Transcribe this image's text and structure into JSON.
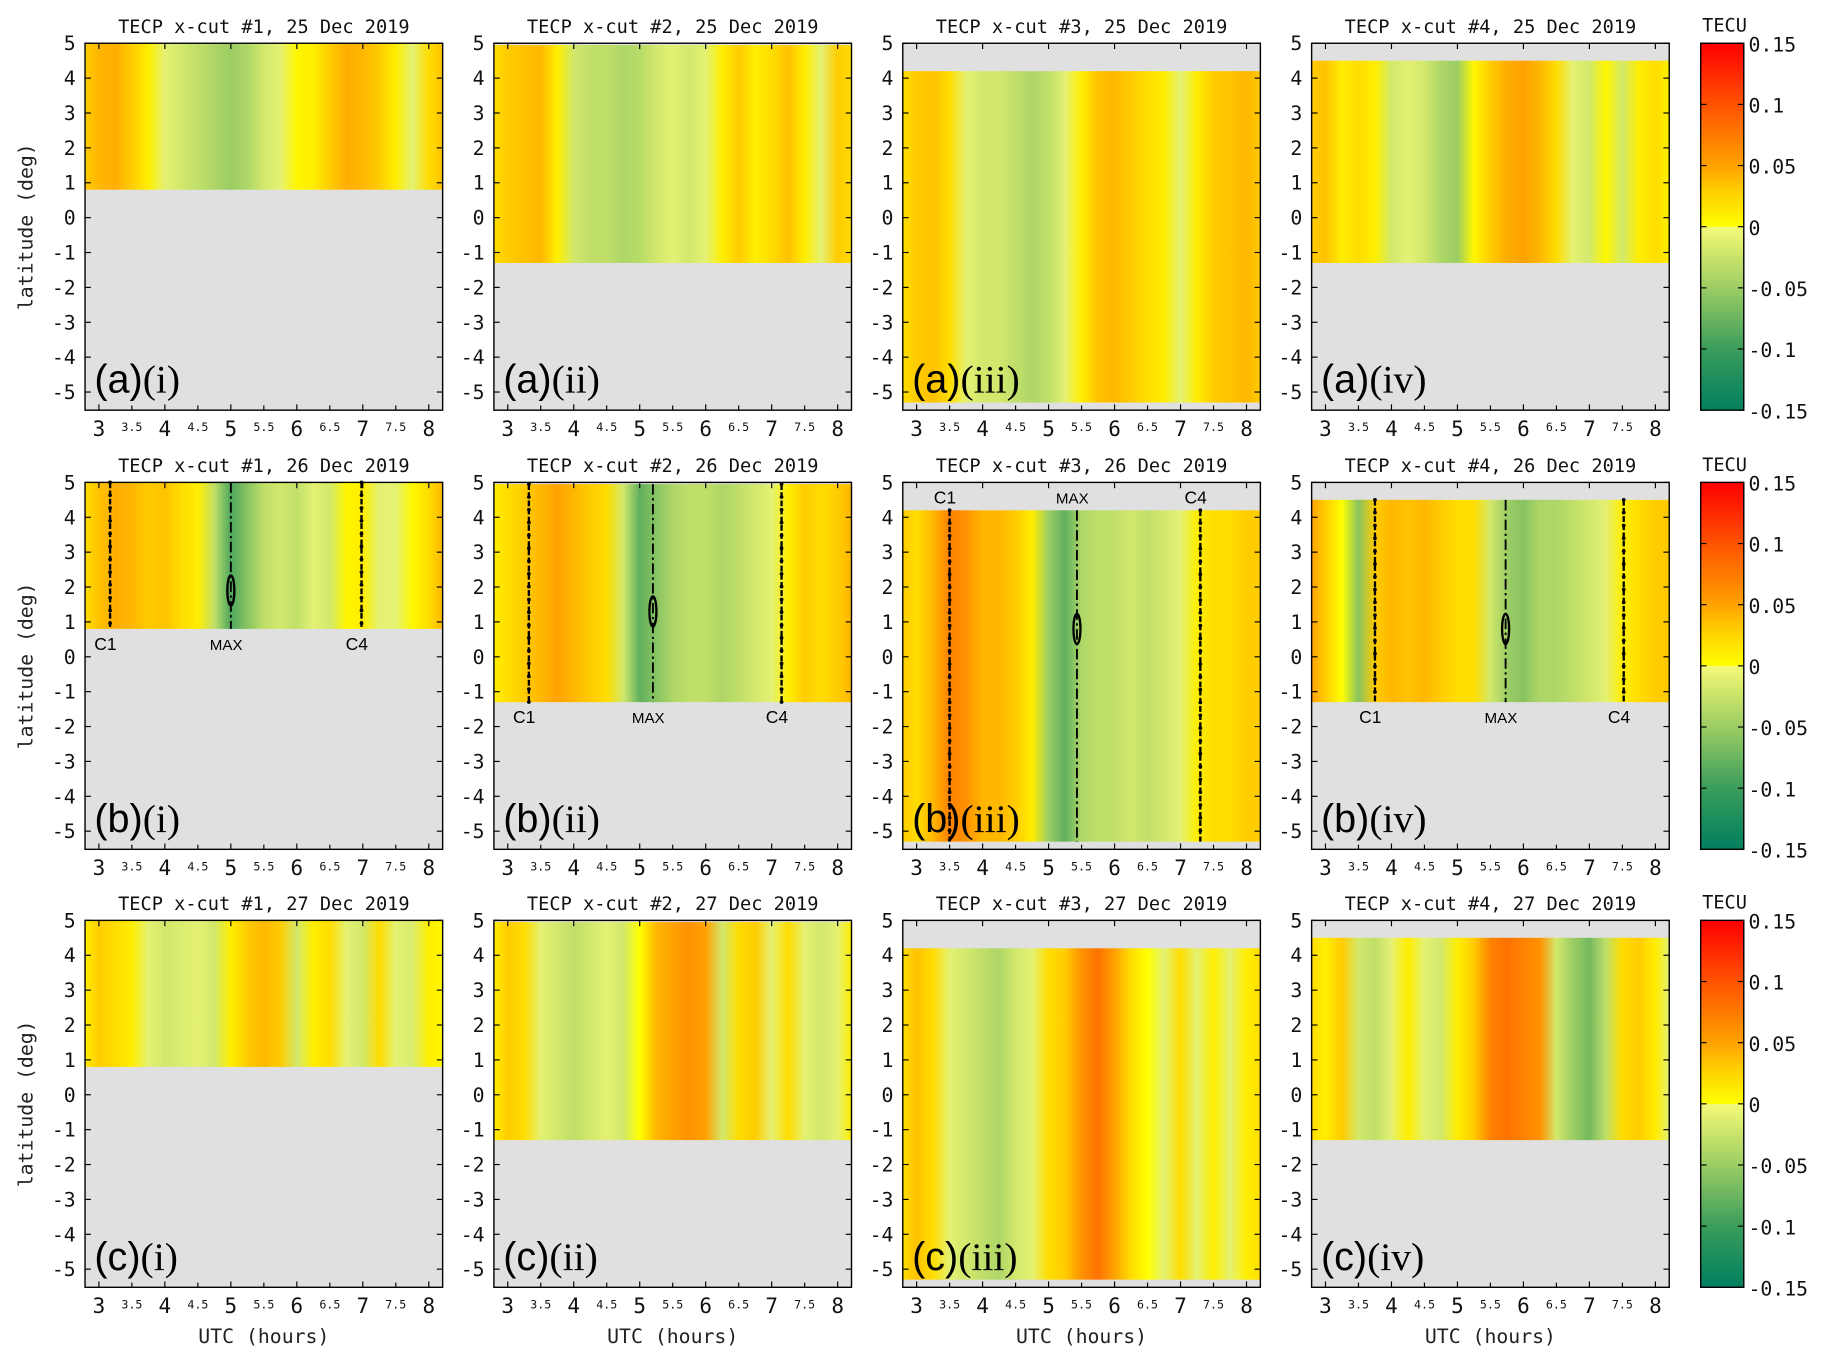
{
  "chart_data": {
    "type": "heatmap",
    "xlabel": "UTC (hours)",
    "ylabel": "latitude (deg)",
    "xlim": [
      2.79,
      8.21
    ],
    "ylim": [
      -5.52,
      5
    ],
    "x_major_ticks": [
      "3",
      "4",
      "5",
      "6",
      "7",
      "8"
    ],
    "x_minor_ticks": [
      "3.5",
      "4.5",
      "5.5",
      "6.5",
      "7.5"
    ],
    "y_ticks": [
      "5",
      "4",
      "3",
      "2",
      "1",
      "0",
      "-1",
      "-2",
      "-3",
      "-4",
      "-5"
    ],
    "no_data_color": "#e0e0e0",
    "colorbar": {
      "title": "TECU",
      "range": [
        -0.15,
        0.15
      ],
      "ticks": [
        "0.15",
        "0.1",
        "0.05",
        "0",
        "-0.05",
        "-0.1",
        "-0.15"
      ],
      "stops": [
        [
          -0.15,
          "#007f5f"
        ],
        [
          -0.1,
          "#3a9d5b"
        ],
        [
          -0.05,
          "#9ccd64"
        ],
        [
          -0.02,
          "#d2e86c"
        ],
        [
          -0.0001,
          "#f5fa7a"
        ],
        [
          0,
          "#ffff00"
        ],
        [
          0.03,
          "#ffcc00"
        ],
        [
          0.05,
          "#ffa200"
        ],
        [
          0.1,
          "#ff5200"
        ],
        [
          0.15,
          "#ff0000"
        ]
      ]
    },
    "time_samples": {
      "start": 2.75,
      "step": 0.25
    },
    "cuts": [
      {
        "id": "#1",
        "lat_range": [
          0.8,
          5
        ]
      },
      {
        "id": "#2",
        "lat_range": [
          -1.3,
          4.95
        ]
      },
      {
        "id": "#3",
        "lat_range": [
          -5.3,
          4.2
        ]
      },
      {
        "id": "#4",
        "lat_range": [
          -1.3,
          4.5
        ]
      }
    ],
    "panels": [
      {
        "title": "TECP x-cut #1, 25 Dec 2019",
        "letter": "(a)",
        "roman": "(i)",
        "row": 0,
        "cut": 0,
        "values": [
          0.03,
          0.04,
          0.045,
          0.03,
          0.01,
          -0.01,
          -0.02,
          -0.03,
          -0.04,
          -0.05,
          -0.04,
          -0.02,
          -0.01,
          0.005,
          0.01,
          0.03,
          0.045,
          0.04,
          0.03,
          0.01,
          -0.01,
          0.02,
          0.035
        ]
      },
      {
        "title": "TECP x-cut #2, 25 Dec 2019",
        "letter": "(a)",
        "roman": "(ii)",
        "row": 0,
        "cut": 1,
        "values": [
          0.02,
          0.03,
          0.035,
          0.04,
          0.01,
          -0.02,
          -0.03,
          -0.03,
          -0.04,
          -0.035,
          -0.02,
          -0.01,
          -0.02,
          -0.01,
          0.01,
          0.03,
          0.01,
          0.02,
          0.035,
          0.01,
          -0.01,
          0.03,
          0.02
        ]
      },
      {
        "title": "TECP x-cut #3, 25 Dec 2019",
        "letter": "(a)",
        "roman": "(iii)",
        "row": 0,
        "cut": 2,
        "values": [
          0.02,
          0.03,
          0.035,
          0.02,
          -0.01,
          -0.02,
          -0.02,
          -0.03,
          -0.04,
          -0.03,
          -0.01,
          0.01,
          0.035,
          0.04,
          0.03,
          0.02,
          0.01,
          -0.01,
          0.01,
          0.03,
          0.035,
          0.04,
          0.03
        ]
      },
      {
        "title": "TECP x-cut #4, 25 Dec 2019",
        "letter": "(a)",
        "roman": "(iv)",
        "row": 0,
        "cut": 3,
        "values": [
          0.03,
          0.035,
          0.01,
          0.02,
          0.01,
          -0.02,
          -0.01,
          -0.02,
          -0.04,
          -0.05,
          0.005,
          0.03,
          0.045,
          0.05,
          0.04,
          0.02,
          -0.01,
          -0.02,
          0.005,
          -0.02,
          0.01,
          0.02,
          0.01
        ]
      },
      {
        "title": "TECP x-cut #1, 26 Dec 2019",
        "letter": "(b)",
        "roman": "(i)",
        "row": 1,
        "cut": 0,
        "values": [
          0.02,
          0.035,
          0.045,
          0.04,
          0.03,
          0.035,
          0.02,
          0.01,
          -0.03,
          -0.09,
          -0.06,
          -0.03,
          -0.02,
          -0.03,
          -0.01,
          -0.02,
          0.005,
          0.01,
          -0.01,
          -0.01,
          0.005,
          0.02,
          0.04
        ],
        "markers": [
          {
            "label": "C1",
            "utc": 3.17
          },
          {
            "label": "MAX",
            "utc": 5.0,
            "max_lat": 1.9
          },
          {
            "label": "C4",
            "utc": 6.98
          }
        ],
        "marker_labels_pos": "below"
      },
      {
        "title": "TECP x-cut #2, 26 Dec 2019",
        "letter": "(b)",
        "roman": "(ii)",
        "row": 1,
        "cut": 1,
        "values": [
          0.01,
          0.02,
          0.03,
          0.04,
          0.05,
          0.04,
          0.03,
          0.02,
          -0.02,
          -0.08,
          -0.06,
          -0.04,
          -0.03,
          -0.03,
          -0.04,
          -0.03,
          -0.02,
          -0.01,
          0.01,
          0.03,
          0.02,
          0.03,
          0.04
        ],
        "markers": [
          {
            "label": "C1",
            "utc": 3.32
          },
          {
            "label": "MAX",
            "utc": 5.2,
            "max_lat": 1.3
          },
          {
            "label": "C4",
            "utc": 7.15
          }
        ],
        "marker_labels_pos": "below"
      },
      {
        "title": "TECP x-cut #3, 26 Dec 2019",
        "letter": "(b)",
        "roman": "(iii)",
        "row": 1,
        "cut": 2,
        "values": [
          0.03,
          0.02,
          0.04,
          0.07,
          0.06,
          0.04,
          0.04,
          0.03,
          0.01,
          -0.05,
          -0.08,
          -0.04,
          -0.03,
          -0.03,
          -0.02,
          -0.03,
          -0.02,
          -0.01,
          0.01,
          0.02,
          0.02,
          0.03,
          0.03
        ],
        "markers": [
          {
            "label": "C1",
            "utc": 3.5
          },
          {
            "label": "MAX",
            "utc": 5.43,
            "max_lat": 0.8
          },
          {
            "label": "C4",
            "utc": 7.3
          }
        ],
        "marker_labels_pos": "above"
      },
      {
        "title": "TECP x-cut #4, 26 Dec 2019",
        "letter": "(b)",
        "roman": "(iv)",
        "row": 1,
        "cut": 3,
        "values": [
          0.05,
          0.03,
          0.0,
          -0.06,
          0.03,
          0.04,
          0.035,
          0.04,
          0.03,
          0.02,
          0.02,
          -0.02,
          -0.05,
          -0.06,
          -0.04,
          -0.04,
          -0.03,
          -0.02,
          -0.01,
          0.01,
          0.02,
          0.03,
          0.03
        ],
        "markers": [
          {
            "label": "C1",
            "utc": 3.75
          },
          {
            "label": "MAX",
            "utc": 5.73,
            "max_lat": 0.8
          },
          {
            "label": "C4",
            "utc": 7.52
          }
        ],
        "marker_labels_pos": "below"
      },
      {
        "title": "TECP x-cut #1, 27 Dec 2019",
        "letter": "(c)",
        "roman": "(i)",
        "row": 2,
        "cut": 0,
        "values": [
          0.01,
          0.03,
          0.02,
          0.01,
          -0.01,
          -0.02,
          -0.015,
          -0.01,
          -0.02,
          0.01,
          0.03,
          0.04,
          0.03,
          -0.02,
          0.01,
          0.02,
          -0.01,
          -0.02,
          0.02,
          -0.01,
          -0.015,
          0.01,
          0.005
        ]
      },
      {
        "title": "TECP x-cut #2, 27 Dec 2019",
        "letter": "(c)",
        "roman": "(ii)",
        "row": 2,
        "cut": 1,
        "values": [
          0.01,
          0.03,
          0.02,
          -0.01,
          -0.02,
          -0.03,
          -0.02,
          -0.01,
          -0.02,
          0.0,
          0.04,
          0.05,
          0.06,
          0.05,
          -0.02,
          0.02,
          0.03,
          -0.01,
          0.02,
          -0.01,
          -0.02,
          -0.01,
          0.01
        ]
      },
      {
        "title": "TECP x-cut #3, 27 Dec 2019",
        "letter": "(c)",
        "roman": "(iii)",
        "row": 2,
        "cut": 2,
        "values": [
          0.02,
          0.035,
          0.02,
          -0.01,
          -0.02,
          -0.03,
          -0.04,
          -0.02,
          -0.01,
          0.02,
          0.03,
          0.06,
          0.08,
          0.05,
          0.02,
          0.0,
          -0.01,
          0.02,
          -0.01,
          0.01,
          -0.01,
          0.01,
          0.02
        ]
      },
      {
        "title": "TECP x-cut #4, 27 Dec 2019",
        "letter": "(c)",
        "roman": "(iv)",
        "row": 2,
        "cut": 3,
        "values": [
          0.02,
          0.01,
          0.03,
          -0.02,
          -0.03,
          -0.01,
          0.01,
          -0.01,
          -0.02,
          0.01,
          0.03,
          0.07,
          0.08,
          0.07,
          0.06,
          -0.02,
          -0.05,
          -0.07,
          -0.03,
          0.02,
          0.03,
          0.01,
          -0.01
        ]
      }
    ]
  }
}
